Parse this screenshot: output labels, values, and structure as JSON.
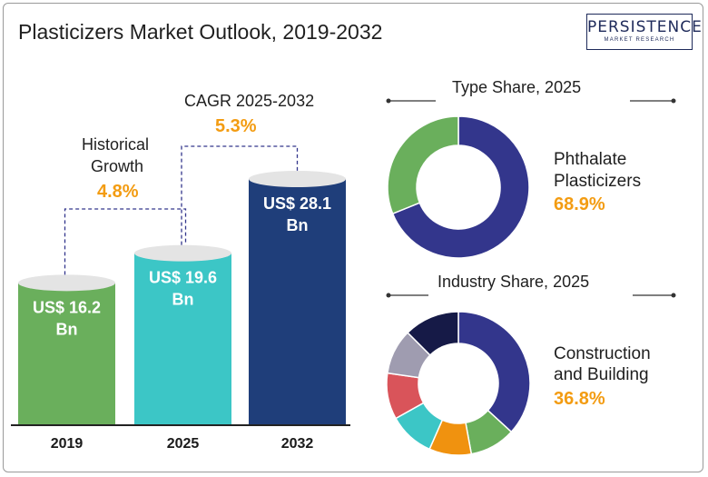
{
  "header": {
    "title": "Plasticizers Market Outlook, 2019-2032",
    "logo_main": "PERSISTENCE",
    "logo_sub": "MARKET RESEARCH"
  },
  "colors": {
    "accent_orange": "#f39c12",
    "bar_2019": "#6aaf5c",
    "bar_2025": "#3cc6c6",
    "bar_2032": "#1f3e7a",
    "phthalate": "#33368c",
    "other_type": "#6aaf5c"
  },
  "annotations": {
    "historical_title_line1": "Historical",
    "historical_title_line2": "Growth",
    "historical_value": "4.8%",
    "cagr_title": "CAGR 2025-2032",
    "cagr_value": "5.3%"
  },
  "chart_data": [
    {
      "type": "bar",
      "categories": [
        "2019",
        "2025",
        "2032"
      ],
      "values": [
        16.2,
        19.6,
        28.1
      ],
      "value_labels": [
        [
          "US$ 16.2",
          "Bn"
        ],
        [
          "US$ 19.6",
          "Bn"
        ],
        [
          "US$ 28.1",
          "Bn"
        ]
      ],
      "title": "",
      "xlabel": "",
      "ylabel": "",
      "grid": false
    },
    {
      "type": "pie",
      "title": "Type Share, 2025",
      "highlight_label_line1": "Phthalate",
      "highlight_label_line2": "Plasticizers",
      "highlight_value": "68.9%",
      "slices": [
        {
          "value": 68.9,
          "color": "#33368c"
        },
        {
          "value": 31.1,
          "color": "#6aaf5c"
        }
      ]
    },
    {
      "type": "pie",
      "title": "Industry  Share, 2025",
      "highlight_label_line1": "Construction",
      "highlight_label_line2": "and Building",
      "highlight_value": "36.8%",
      "slices": [
        {
          "value": 36.8,
          "color": "#33368c"
        },
        {
          "value": 10.3,
          "color": "#6aaf5c"
        },
        {
          "value": 9.5,
          "color": "#f0920f"
        },
        {
          "value": 10.3,
          "color": "#3cc6c6"
        },
        {
          "value": 10.4,
          "color": "#d9545a"
        },
        {
          "value": 10.2,
          "color": "#9f9cb0"
        },
        {
          "value": 12.5,
          "color": "#161a47"
        }
      ]
    }
  ]
}
